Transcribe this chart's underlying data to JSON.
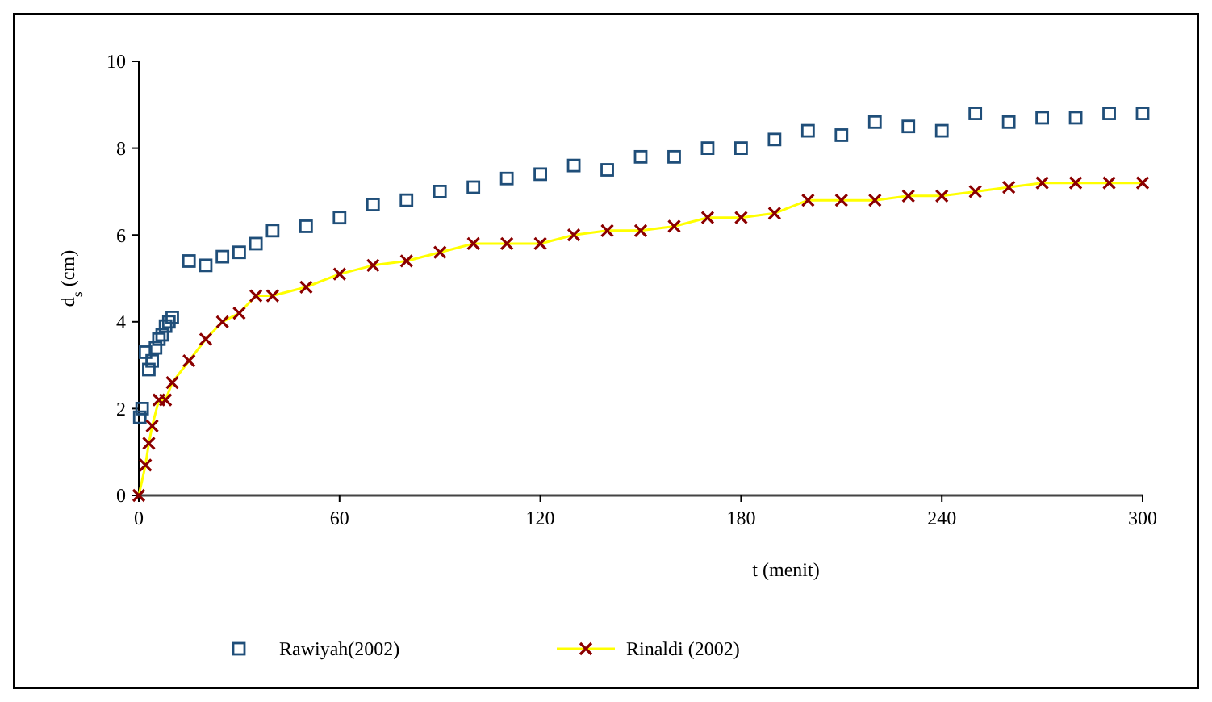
{
  "chart_data": {
    "type": "scatter",
    "xlabel": "t (menit)",
    "ylabel": "d$_{s}$ (cm)",
    "xlim": [
      0,
      300
    ],
    "xticks": [
      0,
      60,
      120,
      180,
      240,
      300
    ],
    "ylim": [
      0,
      10
    ],
    "yticks": [
      0,
      2,
      4,
      6,
      8,
      10
    ],
    "grid": false,
    "legend": "bottom",
    "series": [
      {
        "name": "Rawiyah(2002)",
        "marker": "square",
        "color": "#1f4e79",
        "x": [
          0.3,
          1,
          2,
          3,
          4,
          5,
          6,
          7,
          8,
          9,
          10,
          15,
          20,
          25,
          30,
          35,
          40,
          50,
          60,
          70,
          80,
          90,
          100,
          110,
          120,
          130,
          140,
          150,
          160,
          170,
          180,
          190,
          200,
          210,
          220,
          230,
          240,
          250,
          260,
          270,
          280,
          290,
          300
        ],
        "values": [
          1.8,
          2.0,
          3.3,
          2.9,
          3.1,
          3.4,
          3.6,
          3.7,
          3.9,
          4.0,
          4.1,
          5.4,
          5.3,
          5.5,
          5.6,
          5.8,
          6.1,
          6.2,
          6.4,
          6.7,
          6.8,
          7.0,
          7.1,
          7.3,
          7.4,
          7.6,
          7.5,
          7.8,
          7.8,
          8.0,
          8.0,
          8.2,
          8.4,
          8.3,
          8.6,
          8.5,
          8.4,
          8.8,
          8.6,
          8.7,
          8.7,
          8.8,
          8.8
        ]
      },
      {
        "type": "line",
        "marker": "none",
        "line_style": "solid",
        "color": "#ffff00",
        "x": [
          0,
          2,
          3,
          4,
          6,
          8,
          10,
          15,
          20,
          25,
          30,
          35,
          40,
          50,
          60,
          70,
          80,
          90,
          100,
          110,
          120,
          130,
          140,
          150,
          160,
          170,
          180,
          190,
          200,
          210,
          220,
          230,
          240,
          250,
          260,
          270,
          280,
          290,
          300
        ],
        "values": [
          0,
          0.7,
          1.2,
          1.6,
          2.2,
          2.2,
          2.6,
          3.1,
          3.6,
          4.0,
          4.2,
          4.6,
          4.6,
          4.8,
          5.1,
          5.3,
          5.4,
          5.6,
          5.8,
          5.8,
          5.8,
          6.0,
          6.1,
          6.1,
          6.2,
          6.4,
          6.4,
          6.5,
          6.8,
          6.8,
          6.8,
          6.9,
          6.9,
          7.0,
          7.1,
          7.2,
          7.2,
          7.2,
          7.2
        ]
      },
      {
        "name": "Rinaldi (2002)",
        "marker": "cross",
        "color": "#8b0000",
        "x": [
          0,
          2,
          3,
          4,
          6,
          8,
          10,
          15,
          20,
          25,
          30,
          35,
          40,
          50,
          60,
          70,
          80,
          90,
          100,
          110,
          120,
          130,
          140,
          150,
          160,
          170,
          180,
          190,
          200,
          210,
          220,
          230,
          240,
          250,
          260,
          270,
          280,
          290,
          300
        ],
        "values": [
          0,
          0.7,
          1.2,
          1.6,
          2.2,
          2.2,
          2.6,
          3.1,
          3.6,
          4.0,
          4.2,
          4.6,
          4.6,
          4.8,
          5.1,
          5.3,
          5.4,
          5.6,
          5.8,
          5.8,
          5.8,
          6.0,
          6.1,
          6.1,
          6.2,
          6.4,
          6.4,
          6.5,
          6.8,
          6.8,
          6.8,
          6.9,
          6.9,
          7.0,
          7.1,
          7.2,
          7.2,
          7.2,
          7.2
        ]
      }
    ]
  }
}
